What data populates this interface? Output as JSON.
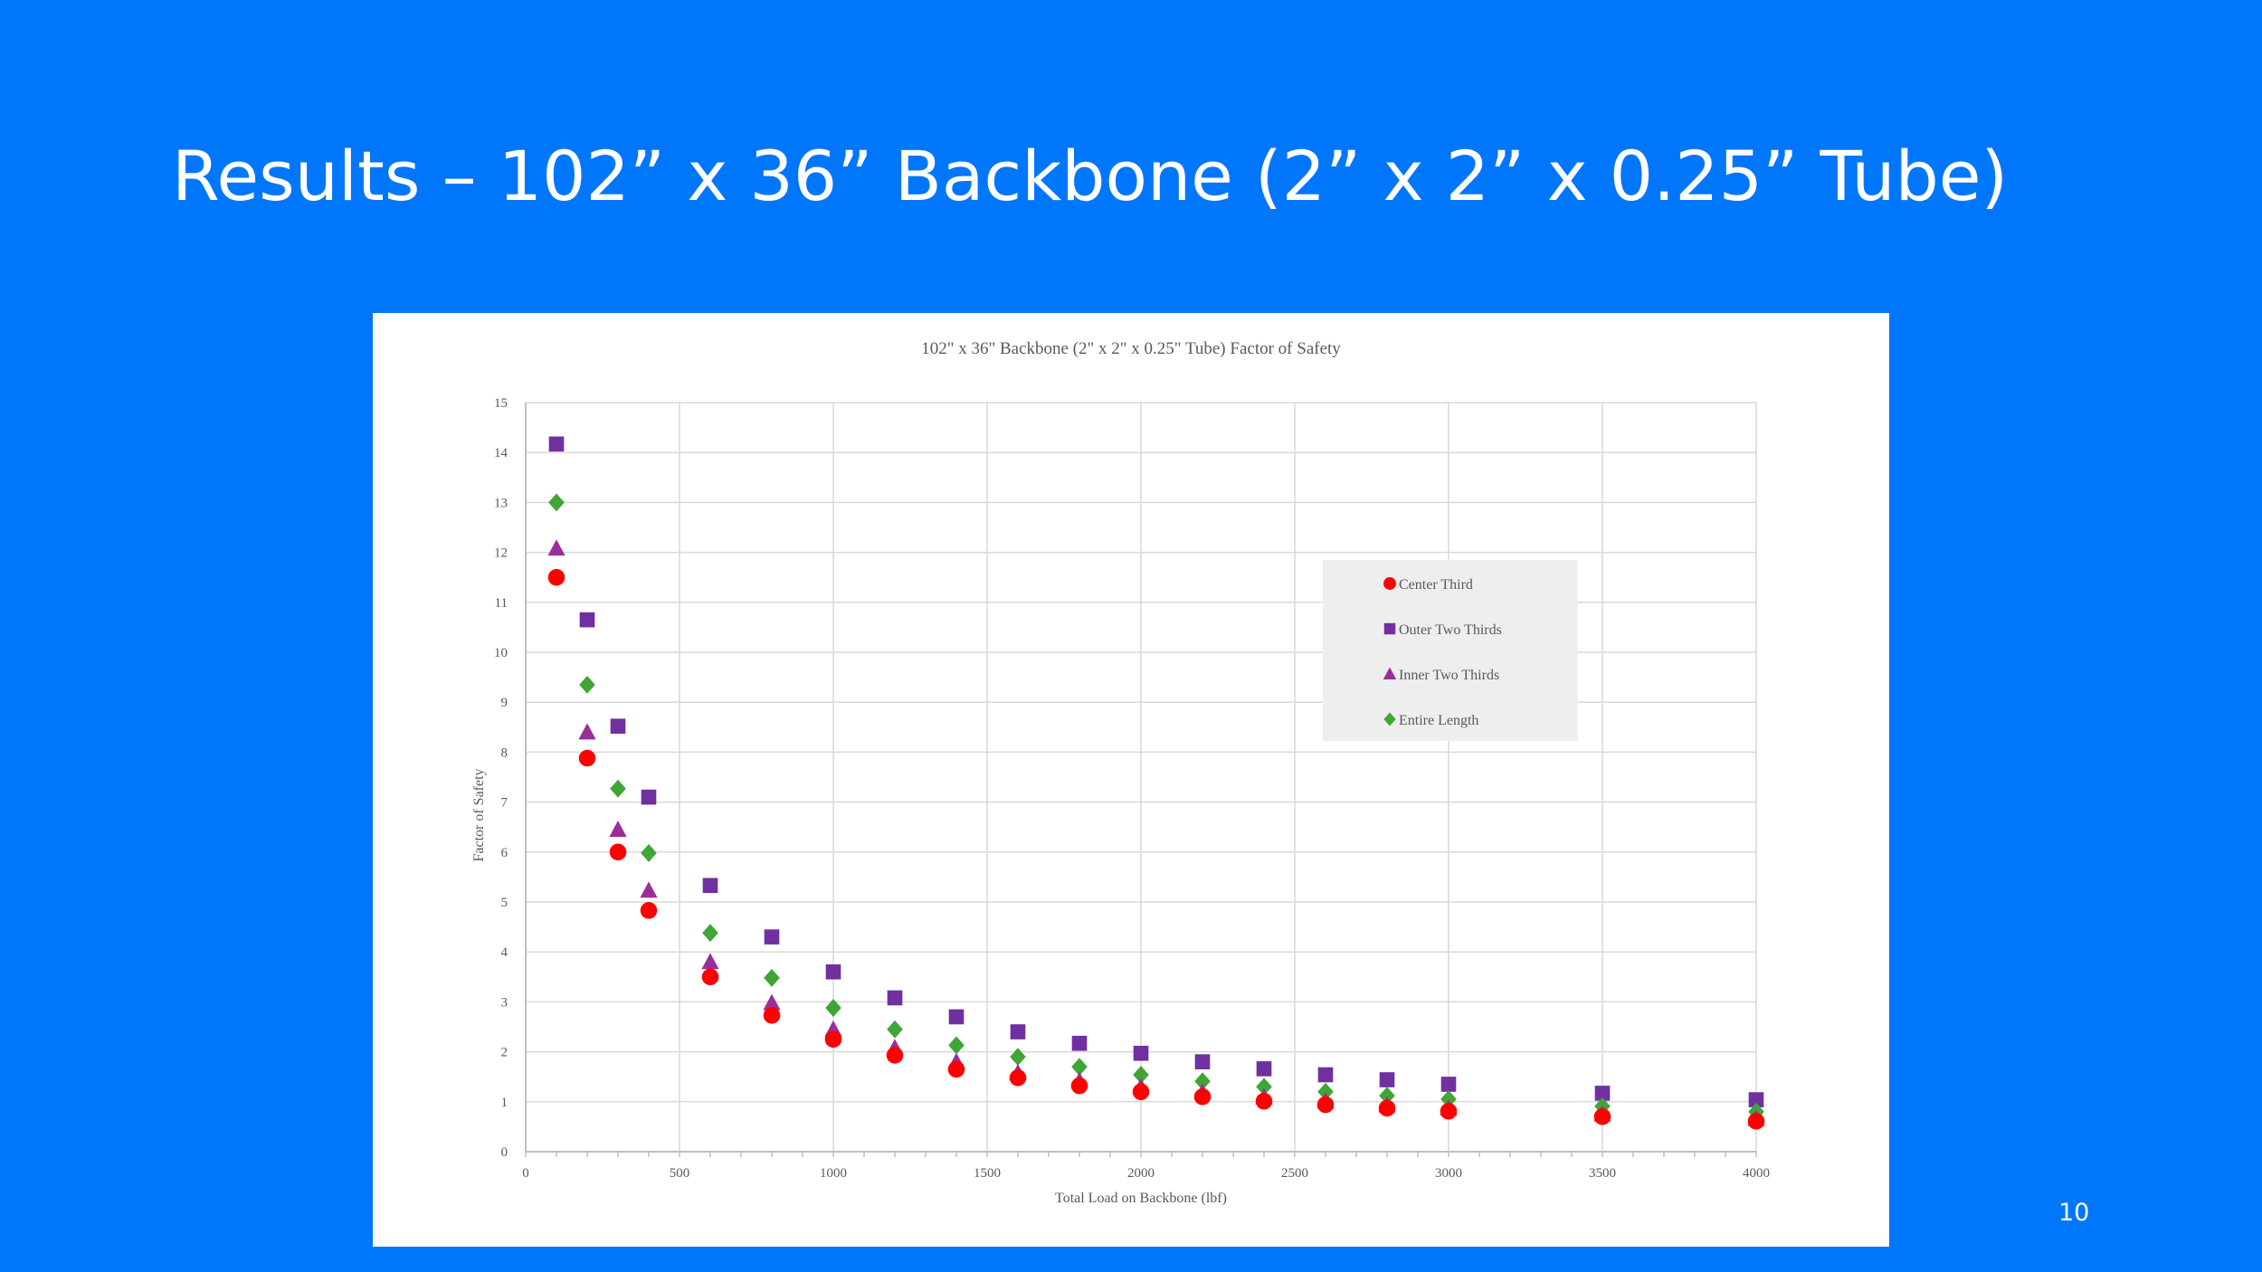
{
  "slide": {
    "title": "Results – 102” x 36” Backbone (2” x 2” x 0.25” Tube)",
    "page_number": "10",
    "background_color": "#0077fa"
  },
  "chart_data": {
    "type": "scatter",
    "title": "102\" x 36\" Backbone (2\" x 2\" x 0.25\" Tube) Factor of Safety",
    "xlabel": "Total Load on Backbone (lbf)",
    "ylabel": "Factor of Safety",
    "xlim": [
      0,
      4000
    ],
    "ylim": [
      0,
      15
    ],
    "x_ticks": [
      0,
      500,
      1000,
      1500,
      2000,
      2500,
      3000,
      3500,
      4000
    ],
    "y_ticks": [
      0,
      1,
      2,
      3,
      4,
      5,
      6,
      7,
      8,
      9,
      10,
      11,
      12,
      13,
      14,
      15
    ],
    "grid": true,
    "legend_position": "upper-right-inside",
    "x": [
      100,
      200,
      300,
      400,
      600,
      800,
      1000,
      1200,
      1400,
      1600,
      1800,
      2000,
      2200,
      2400,
      2600,
      2800,
      3000,
      3500,
      4000
    ],
    "series": [
      {
        "name": "Center Third",
        "marker": "circle",
        "color": "#ff0000",
        "values": [
          11.5,
          7.88,
          6.0,
          4.83,
          3.5,
          2.73,
          2.25,
          1.93,
          1.65,
          1.48,
          1.32,
          1.2,
          1.1,
          1.01,
          0.94,
          0.87,
          0.81,
          0.7,
          0.61
        ]
      },
      {
        "name": "Outer Two Thirds",
        "marker": "square",
        "color": "#7030a0",
        "values": [
          14.17,
          10.65,
          8.52,
          7.1,
          5.33,
          4.3,
          3.6,
          3.08,
          2.7,
          2.4,
          2.17,
          1.97,
          1.8,
          1.66,
          1.54,
          1.44,
          1.35,
          1.17,
          1.04
        ]
      },
      {
        "name": "Inner Two Thirds",
        "marker": "triangle",
        "color": "#9b2d9b",
        "values": [
          12.08,
          8.4,
          6.45,
          5.23,
          3.8,
          2.98,
          2.45,
          2.08,
          1.8,
          1.58,
          1.42,
          1.3,
          1.19,
          1.09,
          1.01,
          0.93,
          0.87,
          0.75,
          0.66
        ]
      },
      {
        "name": "Entire Length",
        "marker": "diamond",
        "color": "#3fa535",
        "values": [
          13.0,
          9.35,
          7.27,
          5.98,
          4.38,
          3.48,
          2.88,
          2.45,
          2.13,
          1.9,
          1.7,
          1.54,
          1.41,
          1.3,
          1.2,
          1.12,
          1.05,
          0.91,
          0.8
        ]
      }
    ]
  }
}
